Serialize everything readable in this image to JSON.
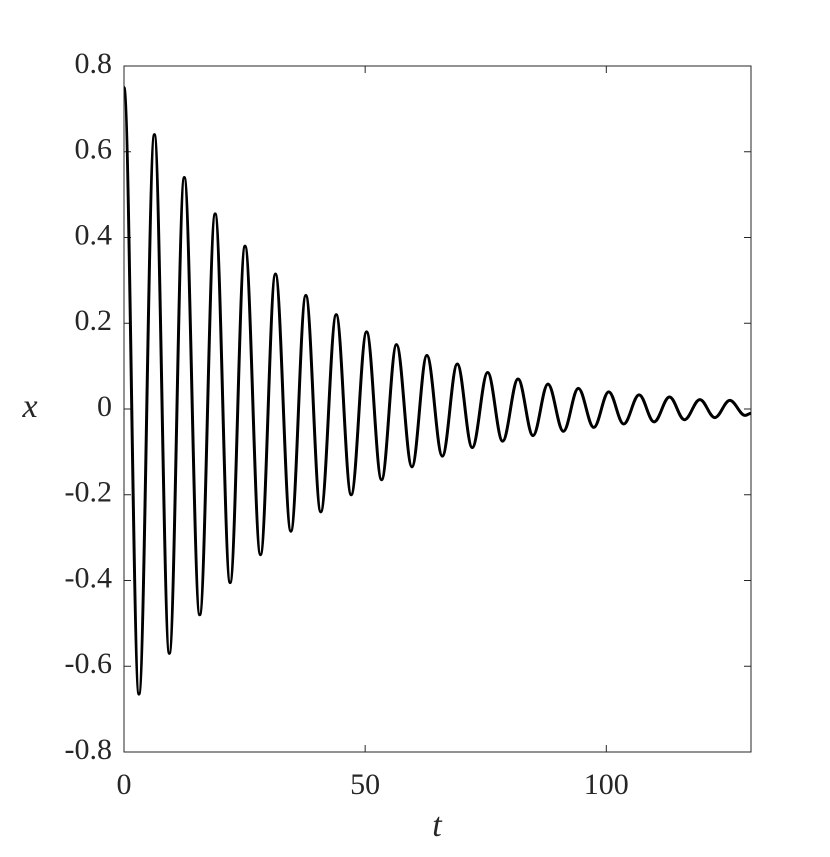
{
  "chart_data": {
    "type": "line",
    "x_label": "t",
    "y_label": "x",
    "x": [
      0,
      3.1,
      6.3,
      9.4,
      12.5,
      15.7,
      18.9,
      22,
      25.1,
      28.3,
      31.4,
      34.6,
      37.7,
      40.8,
      44,
      47.1,
      50.3,
      53.4,
      56.5,
      59.7,
      62.8,
      66,
      69.1,
      72.2,
      75.4,
      78.5,
      81.7,
      84.8,
      87.9,
      91.1,
      94.2,
      97.4,
      100.5,
      103.6,
      106.8,
      109.9,
      113.1,
      116.2,
      119.4,
      122.5,
      125.6,
      128.8,
      130
    ],
    "series": [
      {
        "color": "#000000",
        "values": [
          0.75,
          -0.665,
          0.64,
          -0.57,
          0.54,
          -0.48,
          0.455,
          -0.405,
          0.38,
          -0.34,
          0.315,
          -0.285,
          0.265,
          -0.24,
          0.22,
          -0.2,
          0.18,
          -0.165,
          0.15,
          -0.135,
          0.125,
          -0.11,
          0.105,
          -0.09,
          0.085,
          -0.075,
          0.07,
          -0.062,
          0.058,
          -0.052,
          0.048,
          -0.043,
          0.04,
          -0.035,
          0.033,
          -0.03,
          0.028,
          -0.025,
          0.022,
          -0.02,
          0.02,
          -0.015,
          -0.01
        ]
      }
    ],
    "xlim": [
      0,
      130
    ],
    "xticks": [
      0,
      50,
      100
    ],
    "ylim": [
      -0.8,
      0.8
    ],
    "yticks": [
      -0.8,
      -0.6,
      -0.4,
      -0.2,
      0,
      0.2,
      0.4,
      0.6,
      0.8
    ],
    "grid": false
  }
}
